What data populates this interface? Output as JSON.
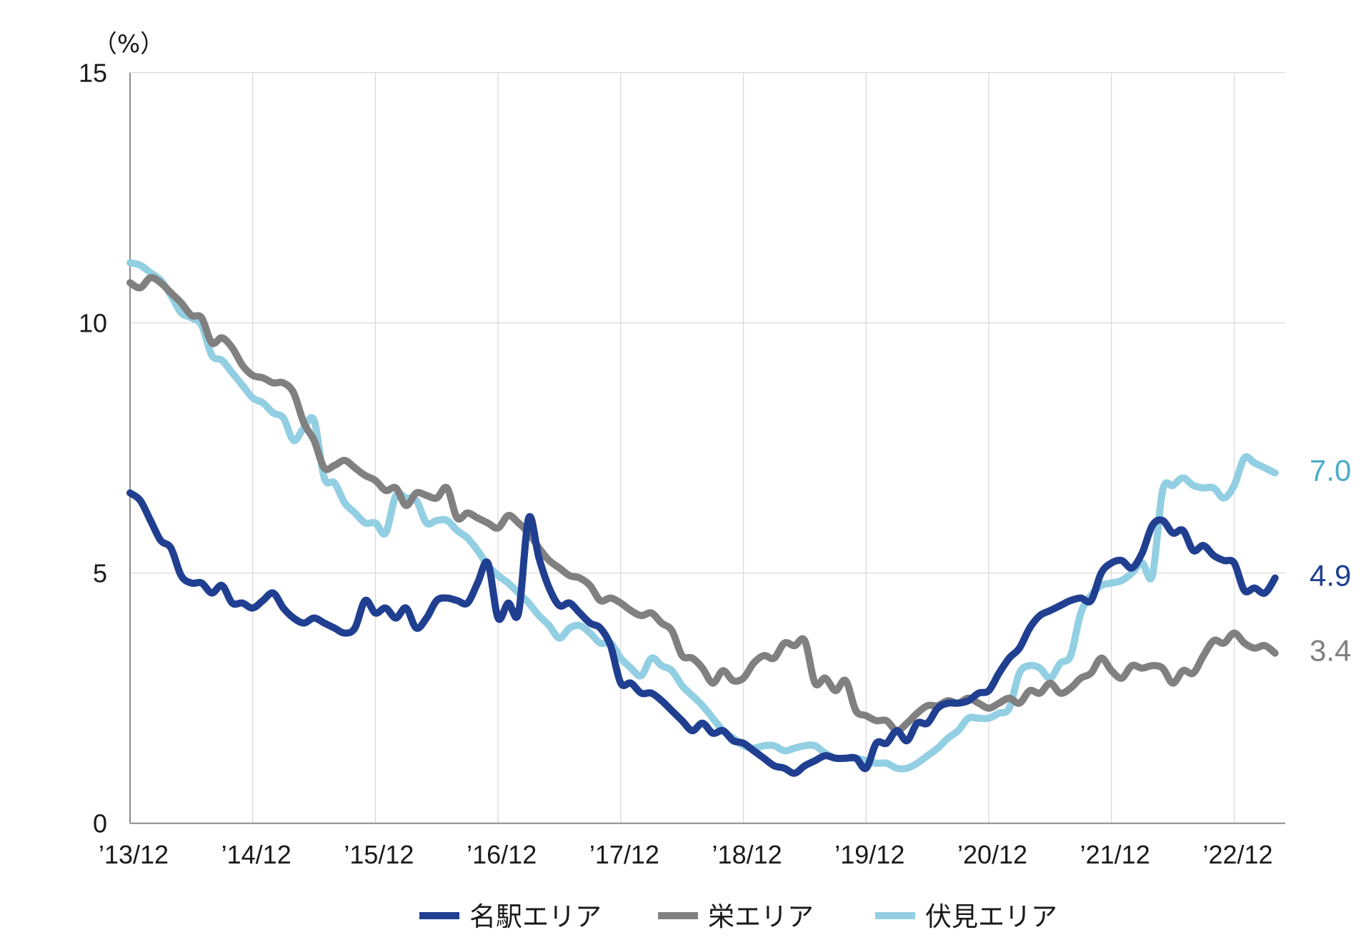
{
  "chart_data": {
    "type": "line",
    "ylabel": "（%）",
    "ylim": [
      0,
      15
    ],
    "xlim": [
      "2013-12",
      "2023-05"
    ],
    "grid": true,
    "legend": "bottom",
    "yticks": [
      {
        "value": 0,
        "label": "0"
      },
      {
        "value": 5,
        "label": "5"
      },
      {
        "value": 10,
        "label": "10"
      },
      {
        "value": 15,
        "label": "15"
      }
    ],
    "xticks": [
      {
        "date": "2013-12",
        "label": "’13/12"
      },
      {
        "date": "2014-12",
        "label": "’14/12"
      },
      {
        "date": "2015-12",
        "label": "’15/12"
      },
      {
        "date": "2016-12",
        "label": "’16/12"
      },
      {
        "date": "2017-12",
        "label": "’17/12"
      },
      {
        "date": "2018-12",
        "label": "’18/12"
      },
      {
        "date": "2019-12",
        "label": "’19/12"
      },
      {
        "date": "2020-12",
        "label": "’20/12"
      },
      {
        "date": "2021-12",
        "label": "’21/12"
      },
      {
        "date": "2022-12",
        "label": "’22/12"
      }
    ],
    "x": [
      "2013-12",
      "2014-01",
      "2014-02",
      "2014-03",
      "2014-04",
      "2014-05",
      "2014-06",
      "2014-07",
      "2014-08",
      "2014-09",
      "2014-10",
      "2014-11",
      "2014-12",
      "2015-01",
      "2015-02",
      "2015-03",
      "2015-04",
      "2015-05",
      "2015-06",
      "2015-07",
      "2015-08",
      "2015-09",
      "2015-10",
      "2015-11",
      "2015-12",
      "2016-01",
      "2016-02",
      "2016-03",
      "2016-04",
      "2016-05",
      "2016-06",
      "2016-07",
      "2016-08",
      "2016-09",
      "2016-10",
      "2016-11",
      "2016-12",
      "2017-01",
      "2017-02",
      "2017-03",
      "2017-04",
      "2017-05",
      "2017-06",
      "2017-07",
      "2017-08",
      "2017-09",
      "2017-10",
      "2017-11",
      "2017-12",
      "2018-01",
      "2018-02",
      "2018-03",
      "2018-04",
      "2018-05",
      "2018-06",
      "2018-07",
      "2018-08",
      "2018-09",
      "2018-10",
      "2018-11",
      "2018-12",
      "2019-01",
      "2019-02",
      "2019-03",
      "2019-04",
      "2019-05",
      "2019-06",
      "2019-07",
      "2019-08",
      "2019-09",
      "2019-10",
      "2019-11",
      "2019-12",
      "2020-01",
      "2020-02",
      "2020-03",
      "2020-04",
      "2020-05",
      "2020-06",
      "2020-07",
      "2020-08",
      "2020-09",
      "2020-10",
      "2020-11",
      "2020-12",
      "2021-01",
      "2021-02",
      "2021-03",
      "2021-04",
      "2021-05",
      "2021-06",
      "2021-07",
      "2021-08",
      "2021-09",
      "2021-10",
      "2021-11",
      "2021-12",
      "2022-01",
      "2022-02",
      "2022-03",
      "2022-04",
      "2022-05",
      "2022-06",
      "2022-07",
      "2022-08",
      "2022-09",
      "2022-10",
      "2022-11",
      "2022-12",
      "2023-01",
      "2023-02",
      "2023-03",
      "2023-04"
    ],
    "series": [
      {
        "name": "名駅エリア",
        "color": "#203f91",
        "label_color": "#203f91",
        "end_label": "4.9",
        "values": [
          6.6,
          6.45,
          6.05,
          5.65,
          5.5,
          4.95,
          4.8,
          4.8,
          4.6,
          4.75,
          4.4,
          4.4,
          4.3,
          4.45,
          4.6,
          4.3,
          4.1,
          4.0,
          4.1,
          4.0,
          3.9,
          3.8,
          3.9,
          4.45,
          4.2,
          4.3,
          4.1,
          4.3,
          3.9,
          4.1,
          4.45,
          4.5,
          4.45,
          4.4,
          4.8,
          5.2,
          4.1,
          4.4,
          4.2,
          6.1,
          5.3,
          4.7,
          4.35,
          4.4,
          4.2,
          4.0,
          3.9,
          3.55,
          2.8,
          2.8,
          2.6,
          2.6,
          2.45,
          2.25,
          2.05,
          1.85,
          2.0,
          1.8,
          1.85,
          1.65,
          1.6,
          1.45,
          1.3,
          1.15,
          1.1,
          1.0,
          1.15,
          1.25,
          1.35,
          1.3,
          1.3,
          1.3,
          1.1,
          1.6,
          1.6,
          1.85,
          1.65,
          2.0,
          2.0,
          2.3,
          2.4,
          2.4,
          2.45,
          2.6,
          2.65,
          3.0,
          3.3,
          3.5,
          3.9,
          4.15,
          4.25,
          4.35,
          4.45,
          4.5,
          4.45,
          5.0,
          5.2,
          5.25,
          5.1,
          5.4,
          5.95,
          6.05,
          5.8,
          5.85,
          5.45,
          5.55,
          5.35,
          5.25,
          5.2,
          4.65,
          4.7,
          4.6,
          4.9
        ]
      },
      {
        "name": "栄エリア",
        "color": "#808080",
        "label_color": "#808080",
        "end_label": "3.4",
        "values": [
          10.8,
          10.7,
          10.9,
          10.8,
          10.6,
          10.4,
          10.15,
          10.1,
          9.6,
          9.7,
          9.5,
          9.15,
          8.95,
          8.9,
          8.8,
          8.8,
          8.6,
          8.0,
          7.65,
          7.1,
          7.15,
          7.25,
          7.1,
          6.95,
          6.85,
          6.65,
          6.7,
          6.35,
          6.6,
          6.55,
          6.5,
          6.7,
          6.1,
          6.2,
          6.1,
          6.0,
          5.9,
          6.15,
          6.0,
          5.8,
          5.5,
          5.25,
          5.1,
          4.95,
          4.9,
          4.75,
          4.45,
          4.5,
          4.4,
          4.25,
          4.15,
          4.2,
          4.0,
          3.85,
          3.35,
          3.3,
          3.1,
          2.8,
          3.05,
          2.85,
          2.9,
          3.2,
          3.35,
          3.3,
          3.6,
          3.55,
          3.65,
          2.8,
          2.9,
          2.65,
          2.85,
          2.25,
          2.15,
          2.05,
          2.05,
          1.85,
          2.0,
          2.2,
          2.35,
          2.35,
          2.45,
          2.4,
          2.5,
          2.4,
          2.3,
          2.4,
          2.5,
          2.4,
          2.65,
          2.6,
          2.8,
          2.6,
          2.7,
          2.9,
          3.0,
          3.3,
          3.05,
          2.9,
          3.15,
          3.1,
          3.15,
          3.1,
          2.8,
          3.05,
          3.0,
          3.35,
          3.65,
          3.6,
          3.8,
          3.6,
          3.5,
          3.55,
          3.4
        ]
      },
      {
        "name": "伏見エリア",
        "color": "#92cfe3",
        "label_color": "#4bacc6",
        "end_label": "7.0",
        "values": [
          11.2,
          11.15,
          11.0,
          10.85,
          10.55,
          10.2,
          10.1,
          9.95,
          9.35,
          9.25,
          9.0,
          8.75,
          8.5,
          8.4,
          8.2,
          8.1,
          7.65,
          7.9,
          8.05,
          6.9,
          6.8,
          6.4,
          6.2,
          6.0,
          6.0,
          5.8,
          6.55,
          6.5,
          6.45,
          6.0,
          6.05,
          6.05,
          5.85,
          5.7,
          5.45,
          5.15,
          4.95,
          4.8,
          4.6,
          4.4,
          4.15,
          3.95,
          3.7,
          3.9,
          3.95,
          3.8,
          3.6,
          3.6,
          3.3,
          3.1,
          2.95,
          3.3,
          3.15,
          3.05,
          2.75,
          2.55,
          2.35,
          2.1,
          1.85,
          1.7,
          1.55,
          1.5,
          1.55,
          1.55,
          1.45,
          1.5,
          1.55,
          1.55,
          1.4,
          1.3,
          1.3,
          1.3,
          1.25,
          1.2,
          1.2,
          1.1,
          1.1,
          1.2,
          1.35,
          1.5,
          1.7,
          1.85,
          2.1,
          2.1,
          2.1,
          2.2,
          2.3,
          3.0,
          3.15,
          3.1,
          2.9,
          3.2,
          3.35,
          4.2,
          4.55,
          4.75,
          4.8,
          4.85,
          5.0,
          5.2,
          4.95,
          6.65,
          6.75,
          6.9,
          6.75,
          6.7,
          6.7,
          6.5,
          6.75,
          7.3,
          7.2,
          7.1,
          7.0
        ]
      }
    ]
  }
}
